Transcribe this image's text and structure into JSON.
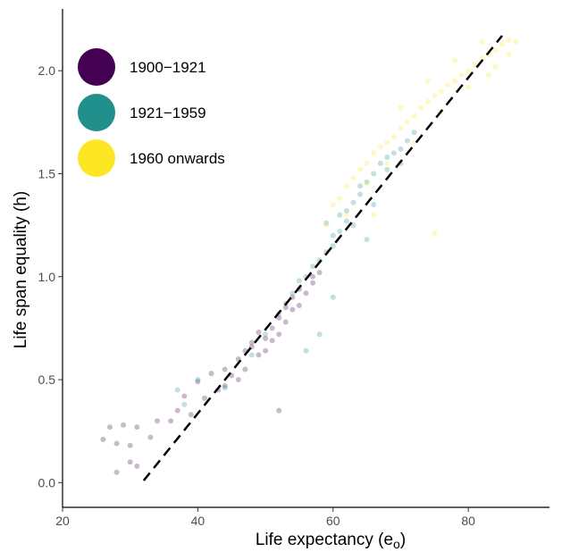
{
  "chart_data": {
    "type": "scatter",
    "title": "",
    "xlabel": "Life expectancy (e",
    "xlabel_subscript": "o",
    "xlabel_suffix": ")",
    "ylabel": "Life span equality (h)",
    "xlim": [
      20,
      92
    ],
    "ylim": [
      -0.12,
      2.3
    ],
    "xticks": [
      20,
      40,
      60,
      80
    ],
    "xtick_labels": [
      "20",
      "40",
      "60",
      "80"
    ],
    "yticks": [
      0.0,
      0.5,
      1.0,
      1.5,
      2.0
    ],
    "ytick_labels": [
      "0.0",
      "0.5",
      "1.0",
      "1.5",
      "2.0"
    ],
    "grid": false,
    "legend_position": "top-left",
    "series": [
      {
        "name": "1900−1921",
        "color": "#440154",
        "points": [
          [
            26,
            0.21
          ],
          [
            27,
            0.27
          ],
          [
            28,
            0.19
          ],
          [
            28,
            0.05
          ],
          [
            29,
            0.28
          ],
          [
            30,
            0.18
          ],
          [
            30,
            0.1
          ],
          [
            31,
            0.27
          ],
          [
            31,
            0.08
          ],
          [
            33,
            0.22
          ],
          [
            34,
            0.3
          ],
          [
            36,
            0.3
          ],
          [
            37,
            0.35
          ],
          [
            38,
            0.42
          ],
          [
            39,
            0.33
          ],
          [
            40,
            0.49
          ],
          [
            41,
            0.41
          ],
          [
            42,
            0.53
          ],
          [
            43,
            0.45
          ],
          [
            44,
            0.55
          ],
          [
            45,
            0.52
          ],
          [
            46,
            0.6
          ],
          [
            47,
            0.55
          ],
          [
            47,
            0.64
          ],
          [
            48,
            0.68
          ],
          [
            49,
            0.62
          ],
          [
            49,
            0.73
          ],
          [
            50,
            0.7
          ],
          [
            50,
            0.64
          ],
          [
            51,
            0.75
          ],
          [
            52,
            0.72
          ],
          [
            52,
            0.8
          ],
          [
            53,
            0.85
          ],
          [
            53,
            0.78
          ],
          [
            54,
            0.9
          ],
          [
            55,
            0.86
          ],
          [
            55,
            0.94
          ],
          [
            56,
            0.92
          ],
          [
            57,
            0.97
          ],
          [
            58,
            1.02
          ],
          [
            52,
            0.35
          ],
          [
            48,
            0.66
          ],
          [
            51,
            0.69
          ],
          [
            54,
            0.84
          ],
          [
            46,
            0.5
          ],
          [
            44,
            0.47
          ],
          [
            57,
            1.0
          ]
        ]
      },
      {
        "name": "1921−1959",
        "color": "#21908c",
        "points": [
          [
            37,
            0.45
          ],
          [
            38,
            0.38
          ],
          [
            40,
            0.5
          ],
          [
            44,
            0.46
          ],
          [
            48,
            0.62
          ],
          [
            50,
            0.72
          ],
          [
            52,
            0.82
          ],
          [
            53,
            0.87
          ],
          [
            54,
            0.92
          ],
          [
            55,
            0.98
          ],
          [
            56,
            1.0
          ],
          [
            57,
            1.05
          ],
          [
            58,
            1.08
          ],
          [
            59,
            1.12
          ],
          [
            60,
            1.15
          ],
          [
            60,
            1.2
          ],
          [
            61,
            1.22
          ],
          [
            62,
            1.27
          ],
          [
            62,
            1.32
          ],
          [
            63,
            1.36
          ],
          [
            64,
            1.4
          ],
          [
            64,
            1.44
          ],
          [
            65,
            1.46
          ],
          [
            66,
            1.5
          ],
          [
            67,
            1.55
          ],
          [
            68,
            1.58
          ],
          [
            68,
            1.52
          ],
          [
            69,
            1.6
          ],
          [
            70,
            1.62
          ],
          [
            71,
            1.66
          ],
          [
            72,
            1.7
          ],
          [
            63,
            1.25
          ],
          [
            61,
            1.3
          ],
          [
            66,
            1.35
          ],
          [
            58,
            0.72
          ],
          [
            60,
            0.9
          ],
          [
            56,
            0.64
          ],
          [
            65,
            1.18
          ],
          [
            59,
            1.26
          ],
          [
            70,
            1.55
          ]
        ]
      },
      {
        "name": "1960 onwards",
        "color": "#fde725",
        "points": [
          [
            59,
            1.25
          ],
          [
            60,
            1.35
          ],
          [
            61,
            1.38
          ],
          [
            62,
            1.44
          ],
          [
            63,
            1.48
          ],
          [
            64,
            1.52
          ],
          [
            65,
            1.55
          ],
          [
            66,
            1.6
          ],
          [
            67,
            1.63
          ],
          [
            68,
            1.65
          ],
          [
            69,
            1.68
          ],
          [
            70,
            1.72
          ],
          [
            71,
            1.75
          ],
          [
            72,
            1.78
          ],
          [
            73,
            1.82
          ],
          [
            74,
            1.85
          ],
          [
            75,
            1.88
          ],
          [
            76,
            1.9
          ],
          [
            77,
            1.93
          ],
          [
            78,
            1.95
          ],
          [
            79,
            1.98
          ],
          [
            80,
            2.0
          ],
          [
            81,
            2.03
          ],
          [
            82,
            2.06
          ],
          [
            83,
            2.08
          ],
          [
            84,
            2.1
          ],
          [
            85,
            2.13
          ],
          [
            86,
            2.15
          ],
          [
            87,
            2.14
          ],
          [
            65,
            1.45
          ],
          [
            68,
            1.55
          ],
          [
            72,
            1.65
          ],
          [
            76,
            1.8
          ],
          [
            80,
            1.92
          ],
          [
            84,
            2.02
          ],
          [
            70,
            1.82
          ],
          [
            74,
            1.95
          ],
          [
            78,
            2.05
          ],
          [
            82,
            2.14
          ],
          [
            75,
            1.21
          ],
          [
            66,
            1.3
          ],
          [
            62,
            1.3
          ],
          [
            86,
            2.08
          ],
          [
            83,
            1.98
          ]
        ]
      }
    ],
    "reference_line": {
      "style": "dashed",
      "color": "#000000",
      "x": [
        32,
        85
      ],
      "y": [
        0.01,
        2.17
      ]
    }
  }
}
